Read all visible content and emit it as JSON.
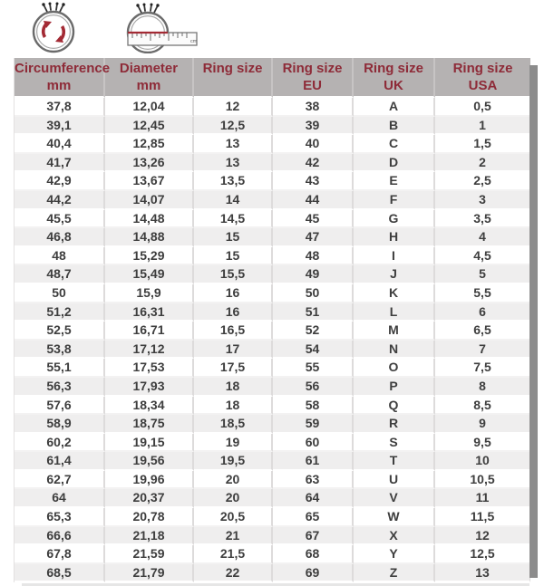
{
  "icons": {
    "circumference_icon": "ring-with-circular-arrows",
    "diameter_icon": "ring-with-ruler-across-diameter",
    "ruler_unit": "cm",
    "accent_color": "#a32a34",
    "outline_color": "#6b6b6b"
  },
  "table": {
    "header_bg": "#b5b2b2",
    "header_text_color": "#8e2b38",
    "body_text_color": "#3e3e3e",
    "alt_row_bg": "#efeeee",
    "columns": [
      {
        "line1": "Circumference",
        "line2": "mm"
      },
      {
        "line1": "Diameter",
        "line2": "mm"
      },
      {
        "line1": "Ring size",
        "line2": ""
      },
      {
        "line1": "Ring size",
        "line2": "EU"
      },
      {
        "line1": "Ring size",
        "line2": "UK"
      },
      {
        "line1": "Ring size",
        "line2": "USA"
      }
    ],
    "rows": [
      [
        "37,8",
        "12,04",
        "12",
        "38",
        "A",
        "0,5"
      ],
      [
        "39,1",
        "12,45",
        "12,5",
        "39",
        "B",
        "1"
      ],
      [
        "40,4",
        "12,85",
        "13",
        "40",
        "C",
        "1,5"
      ],
      [
        "41,7",
        "13,26",
        "13",
        "42",
        "D",
        "2"
      ],
      [
        "42,9",
        "13,67",
        "13,5",
        "43",
        "E",
        "2,5"
      ],
      [
        "44,2",
        "14,07",
        "14",
        "44",
        "F",
        "3"
      ],
      [
        "45,5",
        "14,48",
        "14,5",
        "45",
        "G",
        "3,5"
      ],
      [
        "46,8",
        "14,88",
        "15",
        "47",
        "H",
        "4"
      ],
      [
        "48",
        "15,29",
        "15",
        "48",
        "I",
        "4,5"
      ],
      [
        "48,7",
        "15,49",
        "15,5",
        "49",
        "J",
        "5"
      ],
      [
        "50",
        "15,9",
        "16",
        "50",
        "K",
        "5,5"
      ],
      [
        "51,2",
        "16,31",
        "16",
        "51",
        "L",
        "6"
      ],
      [
        "52,5",
        "16,71",
        "16,5",
        "52",
        "M",
        "6,5"
      ],
      [
        "53,8",
        "17,12",
        "17",
        "54",
        "N",
        "7"
      ],
      [
        "55,1",
        "17,53",
        "17,5",
        "55",
        "O",
        "7,5"
      ],
      [
        "56,3",
        "17,93",
        "18",
        "56",
        "P",
        "8"
      ],
      [
        "57,6",
        "18,34",
        "18",
        "58",
        "Q",
        "8,5"
      ],
      [
        "58,9",
        "18,75",
        "18,5",
        "59",
        "R",
        "9"
      ],
      [
        "60,2",
        "19,15",
        "19",
        "60",
        "S",
        "9,5"
      ],
      [
        "61,4",
        "19,56",
        "19,5",
        "61",
        "T",
        "10"
      ],
      [
        "62,7",
        "19,96",
        "20",
        "63",
        "U",
        "10,5"
      ],
      [
        "64",
        "20,37",
        "20",
        "64",
        "V",
        "11"
      ],
      [
        "65,3",
        "20,78",
        "20,5",
        "65",
        "W",
        "11,5"
      ],
      [
        "66,6",
        "21,18",
        "21",
        "67",
        "X",
        "12"
      ],
      [
        "67,8",
        "21,59",
        "21,5",
        "68",
        "Y",
        "12,5"
      ],
      [
        "68,5",
        "21,79",
        "22",
        "69",
        "Z",
        "13"
      ]
    ]
  }
}
